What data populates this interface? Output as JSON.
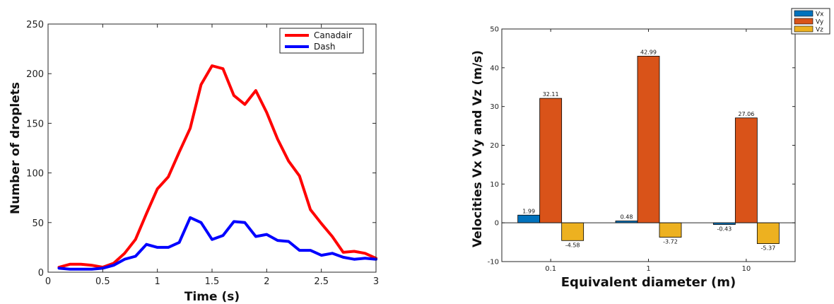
{
  "chart_data": [
    {
      "type": "line",
      "title": "",
      "xlabel": "Time (s)",
      "ylabel": "Number of droplets",
      "xlim": [
        0,
        3
      ],
      "ylim": [
        0,
        250
      ],
      "xticks": [
        0,
        0.5,
        1,
        1.5,
        2,
        2.5,
        3
      ],
      "xtick_labels": [
        "0",
        "0.5",
        "1",
        "1.5",
        "2",
        "2.5",
        "3"
      ],
      "yticks": [
        0,
        50,
        100,
        150,
        200,
        250
      ],
      "ytick_labels": [
        "0",
        "50",
        "100",
        "150",
        "200",
        "250"
      ],
      "grid": false,
      "legend_position": "top-right",
      "x": [
        0.1,
        0.2,
        0.3,
        0.4,
        0.5,
        0.6,
        0.7,
        0.8,
        0.9,
        1.0,
        1.1,
        1.2,
        1.3,
        1.4,
        1.5,
        1.6,
        1.7,
        1.8,
        1.9,
        2.0,
        2.1,
        2.2,
        2.3,
        2.4,
        2.5,
        2.6,
        2.7,
        2.8,
        2.9,
        3.0
      ],
      "series": [
        {
          "name": "Canadair",
          "color": "#ff0000",
          "values": [
            5,
            8,
            8,
            7,
            5,
            9,
            19,
            33,
            59,
            84,
            96,
            121,
            145,
            189,
            208,
            205,
            178,
            169,
            183,
            161,
            134,
            112,
            97,
            63,
            49,
            36,
            20,
            21,
            19,
            14
          ]
        },
        {
          "name": "Dash",
          "color": "#0000ff",
          "values": [
            4,
            3,
            3,
            3,
            4,
            7,
            13,
            16,
            28,
            25,
            25,
            30,
            55,
            50,
            33,
            37,
            51,
            50,
            36,
            38,
            32,
            31,
            22,
            22,
            17,
            19,
            15,
            13,
            14,
            13
          ]
        }
      ]
    },
    {
      "type": "bar",
      "title": "",
      "xlabel": "Equivalent diameter (m)",
      "ylabel": "Velocities Vx Vy and Vz (m/s)",
      "categories": [
        "0.1",
        "1",
        "10"
      ],
      "ylim": [
        -10,
        50
      ],
      "yticks": [
        -10,
        0,
        10,
        20,
        30,
        40,
        50
      ],
      "ytick_labels": [
        "-10",
        "0",
        "10",
        "20",
        "30",
        "40",
        "50"
      ],
      "grid": false,
      "legend_position": "top-right",
      "series": [
        {
          "name": "Vx",
          "color": "#0072bd",
          "values": [
            1.99,
            0.48,
            -0.43
          ],
          "labels": [
            "1.99",
            "0.48",
            "-0.43"
          ]
        },
        {
          "name": "Vy",
          "color": "#d95319",
          "values": [
            32.11,
            42.99,
            27.06
          ],
          "labels": [
            "32.11",
            "42.99",
            "27.06"
          ]
        },
        {
          "name": "Vz",
          "color": "#edb120",
          "values": [
            -4.58,
            -3.72,
            -5.37
          ],
          "labels": [
            "-4.58",
            "-3.72",
            "-5.37"
          ]
        }
      ]
    }
  ]
}
